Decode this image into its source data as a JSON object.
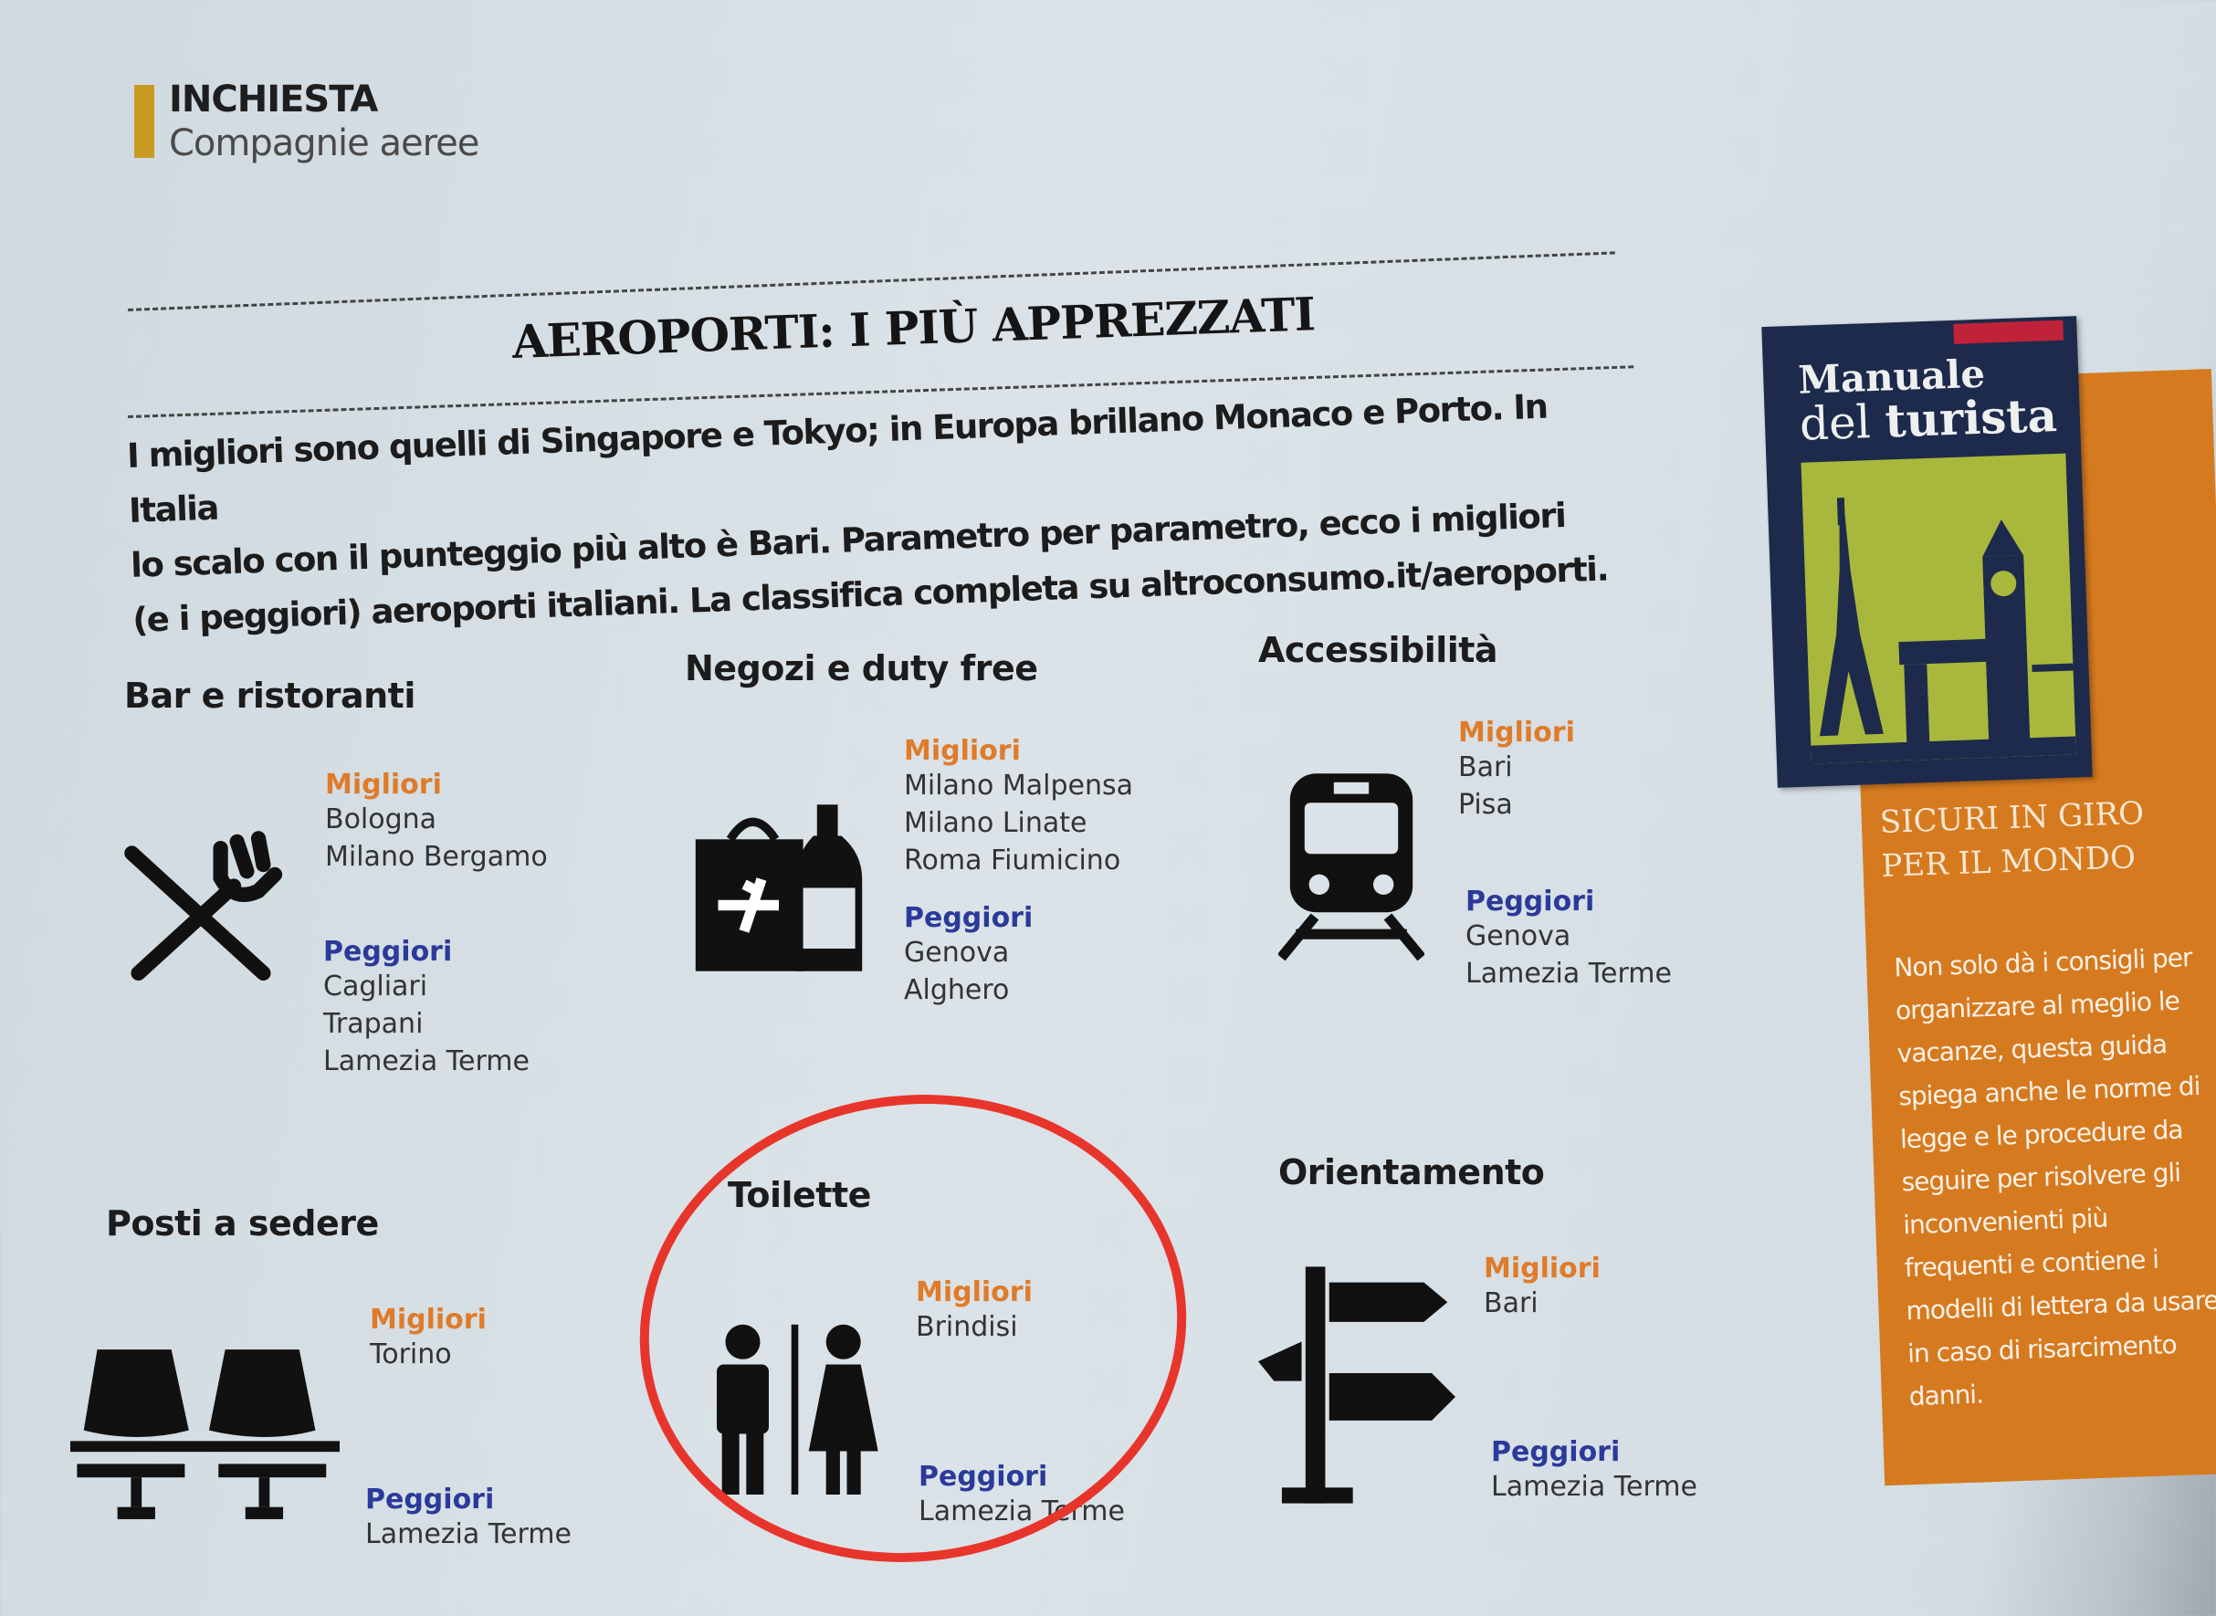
{
  "header": {
    "kicker": "INCHIESTA",
    "subkicker": "Compagnie aeree"
  },
  "article": {
    "title": "AEROPORTI: I PIÙ APPREZZATI",
    "intro_lines": [
      "I migliori sono quelli di Singapore e Tokyo;  in Europa brillano Monaco e Porto. In Italia",
      "lo scalo con il punteggio più alto è Bari. Parametro per parametro, ecco i migliori",
      "(e i peggiori) aeroporti italiani. La classifica completa su altroconsumo.it/aeroporti."
    ],
    "best_label": "Migliori",
    "worst_label": "Peggiori",
    "sections": [
      {
        "title": "Bar e ristoranti",
        "icon": "fork-knife-icon",
        "best": [
          "Bologna",
          "Milano Bergamo"
        ],
        "worst": [
          "Cagliari",
          "Trapani",
          "Lamezia Terme"
        ]
      },
      {
        "title": "Negozi e duty free",
        "icon": "shopping-bag-bottle-icon",
        "best": [
          "Milano Malpensa",
          "Milano Linate",
          "Roma Fiumicino"
        ],
        "worst": [
          "Genova",
          "Alghero"
        ]
      },
      {
        "title": "Accessibilità",
        "icon": "train-icon",
        "best": [
          "Bari",
          "Pisa"
        ],
        "worst": [
          "Genova",
          "Lamezia Terme"
        ]
      },
      {
        "title": "Posti a sedere",
        "icon": "seats-icon",
        "best": [
          "Torino"
        ],
        "worst": [
          "Lamezia Terme"
        ]
      },
      {
        "title": "Toilette",
        "icon": "toilet-man-woman-icon",
        "best": [
          "Brindisi"
        ],
        "worst": [
          "Lamezia Terme"
        ]
      },
      {
        "title": "Orientamento",
        "icon": "signpost-icon",
        "best": [
          "Bari"
        ],
        "worst": [
          "Lamezia Terme"
        ]
      }
    ],
    "highlight_color": "#e8352c"
  },
  "sidebar": {
    "book_title_1": "Manuale",
    "book_title_2a": "del",
    "book_title_2b": "turista",
    "heading_lines": [
      "SICURI IN GIRO",
      "PER IL MONDO"
    ],
    "body": "Non solo dà i consigli per organizzare al meglio le vacanze, questa guida spiega anche le norme di legge e le procedure da seguire per risolvere gli inconvenienti più frequenti e contiene i modelli di lettera da usare in caso di risarcimento danni.",
    "colors": {
      "book": "#1d2a4b",
      "panel": "#d67a20",
      "art": "#a8b83c"
    }
  }
}
